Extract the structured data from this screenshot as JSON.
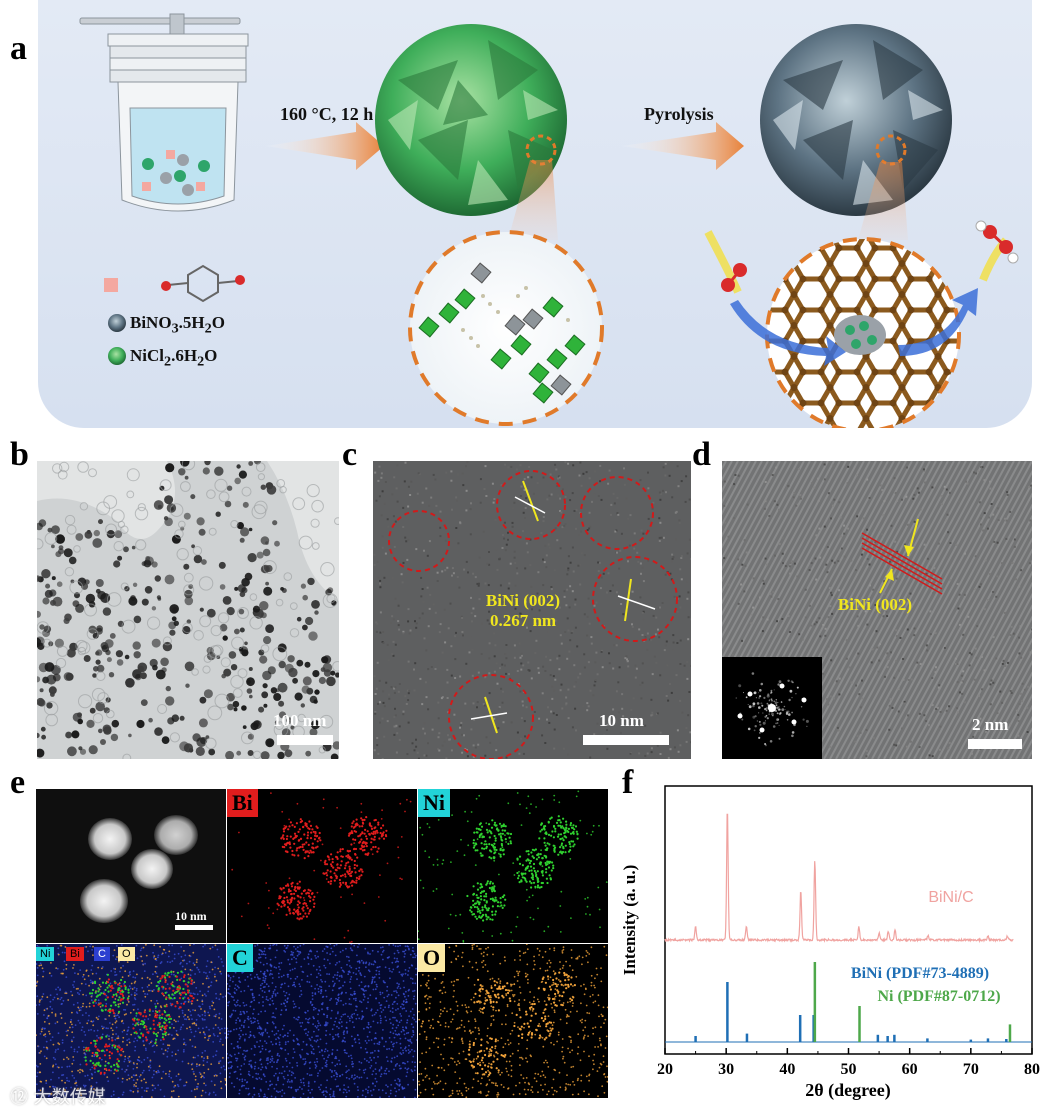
{
  "panels": {
    "a": "a",
    "b": "b",
    "c": "c",
    "d": "d",
    "e": "e",
    "f": "f"
  },
  "scheme": {
    "step1_label": "160 °C, 12 h",
    "step2_label": "Pyrolysis",
    "legend": {
      "bi_salt": "BiNO",
      "bi_salt_sub": "3",
      "bi_salt_rest": ".5H",
      "bi_salt_sub2": "2",
      "bi_salt_end": "O",
      "ni_salt": "NiCl",
      "ni_salt_sub": "2",
      "ni_salt_rest": ".6H",
      "ni_salt_sub2": "2",
      "ni_salt_end": "O"
    },
    "colors": {
      "arrow": "#e8823a",
      "sphere_green": "#3fae5a",
      "sphere_gray": "#5d7383",
      "carbon": "#8b5a1e",
      "dashed_circle": "#e07a2a"
    }
  },
  "tem_b": {
    "scalebar": "100 nm"
  },
  "tem_c": {
    "label_line1": "BiNi (002)",
    "label_line2": "0.267 nm",
    "scalebar": "10 nm"
  },
  "tem_d": {
    "label": "BiNi (002)",
    "scalebar": "2 nm"
  },
  "mapping_e": {
    "scalebar": "10 nm",
    "bi_label": "Bi",
    "ni_label": "Ni",
    "c_label": "C",
    "o_label": "O",
    "merged_tags": [
      "Ni",
      "Bi",
      "C",
      "O"
    ],
    "colors": {
      "bi": "#e11d1d",
      "ni": "#2fd12f",
      "c": "#3a4fd6",
      "o": "#f0a23a"
    }
  },
  "chart_data": {
    "type": "line",
    "xlabel": "2θ (degree)",
    "ylabel": "Intensity (a. u.)",
    "xlim": [
      20,
      80
    ],
    "xticks": [
      20,
      30,
      40,
      50,
      60,
      70,
      80
    ],
    "series": [
      {
        "name": "BiNi/C",
        "color": "#f0a3a0",
        "kind": "profile",
        "baseline": 0.18,
        "peaks": [
          {
            "x": 25.0,
            "y": 0.1
          },
          {
            "x": 30.2,
            "y": 1.0
          },
          {
            "x": 33.3,
            "y": 0.1
          },
          {
            "x": 42.2,
            "y": 0.38
          },
          {
            "x": 44.5,
            "y": 0.6
          },
          {
            "x": 51.7,
            "y": 0.1
          },
          {
            "x": 55.0,
            "y": 0.05
          },
          {
            "x": 56.5,
            "y": 0.07
          },
          {
            "x": 57.6,
            "y": 0.08
          },
          {
            "x": 63.0,
            "y": 0.03
          },
          {
            "x": 72.8,
            "y": 0.03
          },
          {
            "x": 76.0,
            "y": 0.03
          }
        ]
      },
      {
        "name": "BiNi (PDF#73-4889)",
        "color": "#1f6fb5",
        "kind": "sticks",
        "sticks": [
          {
            "x": 25.0,
            "y": 0.1
          },
          {
            "x": 30.2,
            "y": 1.0
          },
          {
            "x": 33.4,
            "y": 0.14
          },
          {
            "x": 42.1,
            "y": 0.45
          },
          {
            "x": 44.3,
            "y": 0.45
          },
          {
            "x": 54.8,
            "y": 0.12
          },
          {
            "x": 56.4,
            "y": 0.1
          },
          {
            "x": 57.5,
            "y": 0.12
          },
          {
            "x": 62.9,
            "y": 0.06
          },
          {
            "x": 70.0,
            "y": 0.04
          },
          {
            "x": 72.8,
            "y": 0.06
          },
          {
            "x": 75.8,
            "y": 0.05
          }
        ]
      },
      {
        "name": "Ni (PDF#87-0712)",
        "color": "#4ea84a",
        "kind": "sticks",
        "sticks": [
          {
            "x": 44.5,
            "y": 1.0
          },
          {
            "x": 51.8,
            "y": 0.45
          },
          {
            "x": 76.4,
            "y": 0.22
          }
        ]
      }
    ]
  },
  "watermark": "⑫ 大数传媒"
}
